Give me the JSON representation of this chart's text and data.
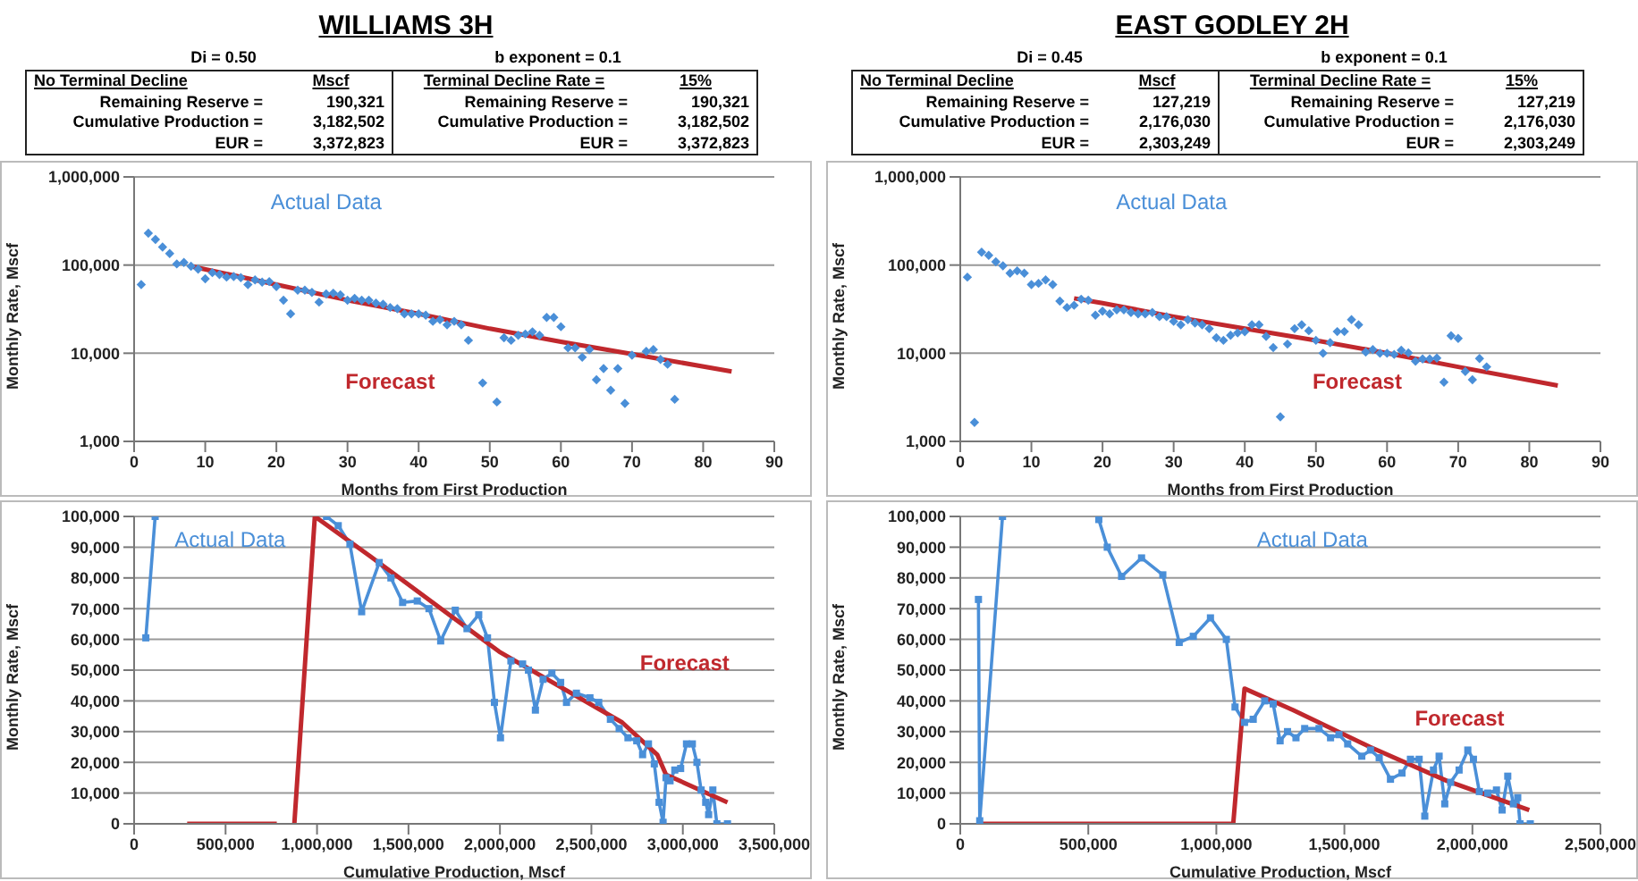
{
  "chart_data": [
    {
      "type": "other",
      "title": "WILLIAMS 3H",
      "annotations": [
        "Di = 0.50",
        "b exponent = 0.1",
        "No Terminal Decline",
        "Mscf",
        "Terminal Decline Rate =",
        "15%",
        "Remaining Reserve =",
        "190,321",
        "Remaining Reserve =",
        "190,321",
        "Cumulative Production =",
        "3,182,502",
        "Cumulative Production =",
        "3,182,502",
        "EUR =",
        "3,372,823",
        "EUR =",
        "3,372,823"
      ]
    },
    {
      "type": "other",
      "title": "EAST GODLEY 2H",
      "annotations": [
        "Di = 0.45",
        "b exponent = 0.1",
        "No Terminal Decline",
        "Mscf",
        "Terminal Decline Rate =",
        "15%",
        "Remaining Reserve =",
        "127,219",
        "Remaining Reserve =",
        "127,219",
        "Cumulative Production =",
        "2,176,030",
        "Cumulative Production =",
        "2,176,030",
        "EUR =",
        "2,303,249",
        "EUR =",
        "2,303,249"
      ]
    },
    {
      "type": "scatter",
      "xlabel": "Months from First Production",
      "ylabel": "Monthly Rate, Mscf",
      "xlim": [
        0,
        90
      ],
      "xticks": [
        0,
        10,
        20,
        30,
        40,
        50,
        60,
        70,
        80,
        90
      ],
      "ylim": [
        1000,
        1000000
      ],
      "yticks": [
        {
          "value": 1000,
          "label": "1,000"
        },
        {
          "value": 10000,
          "label": "10,000"
        },
        {
          "value": 100000,
          "label": "100,000"
        },
        {
          "value": 1000000,
          "label": "1,000,000"
        }
      ],
      "log": "y",
      "grid": "y",
      "annotations": [
        "Actual Data",
        "Forecast"
      ],
      "series": [
        {
          "type": "scatter",
          "marker": "diamond",
          "color": "#4a8fd8",
          "x": [
            1,
            2,
            3,
            4,
            5,
            6,
            7,
            8,
            9,
            10,
            11,
            12,
            13,
            14,
            15,
            16,
            17,
            18,
            19,
            20,
            21,
            22,
            23,
            24,
            25,
            26,
            27,
            28,
            29,
            30,
            31,
            32,
            33,
            34,
            35,
            36,
            37,
            38,
            39,
            40,
            41,
            42,
            43,
            44,
            45,
            46,
            47,
            49,
            51,
            52,
            53,
            54,
            55,
            56,
            57,
            58,
            59,
            60,
            61,
            62,
            63,
            64,
            65,
            66,
            67,
            68,
            69,
            70,
            72,
            73,
            74,
            75,
            76
          ],
          "values": [
            60000,
            230000,
            195000,
            160000,
            135000,
            103000,
            107000,
            97000,
            90000,
            70000,
            82000,
            78000,
            73000,
            74000,
            72000,
            60000,
            68000,
            64000,
            65000,
            57000,
            40000,
            28000,
            52000,
            52000,
            49000,
            38000,
            47000,
            48000,
            46000,
            40000,
            42000,
            40000,
            40000,
            37000,
            36000,
            33000,
            32000,
            28000,
            28000,
            28000,
            27000,
            23000,
            24000,
            21000,
            23000,
            21000,
            14000,
            4600,
            2800,
            15000,
            14000,
            16000,
            16500,
            17500,
            16000,
            25500,
            25500,
            20000,
            11500,
            11500,
            9000,
            11000,
            5000,
            6700,
            3800,
            6700,
            2700,
            9500,
            10500,
            11000,
            8500,
            7500,
            3000
          ]
        },
        {
          "type": "line",
          "marker": "none",
          "color": "#c0282d",
          "x": [
            8,
            20,
            30,
            40,
            50,
            60,
            70,
            84
          ],
          "values": [
            97000,
            60000,
            40000,
            28000,
            19000,
            13500,
            9800,
            6200
          ]
        }
      ]
    },
    {
      "type": "scatter",
      "xlabel": "Months from First Production",
      "ylabel": "Monthly Rate, Mscf",
      "xlim": [
        0,
        90
      ],
      "xticks": [
        0,
        10,
        20,
        30,
        40,
        50,
        60,
        70,
        80,
        90
      ],
      "ylim": [
        1000,
        1000000
      ],
      "yticks": [
        {
          "value": 1000,
          "label": "1,000"
        },
        {
          "value": 10000,
          "label": "10,000"
        },
        {
          "value": 100000,
          "label": "100,000"
        },
        {
          "value": 1000000,
          "label": "1,000,000"
        }
      ],
      "log": "y",
      "grid": "y",
      "annotations": [
        "Actual Data",
        "Forecast"
      ],
      "series": [
        {
          "type": "scatter",
          "marker": "diamond",
          "color": "#4a8fd8",
          "x": [
            1,
            2,
            3,
            4,
            5,
            6,
            7,
            8,
            9,
            10,
            11,
            12,
            13,
            14,
            15,
            16,
            17,
            18,
            19,
            20,
            21,
            22,
            23,
            24,
            25,
            26,
            27,
            28,
            29,
            30,
            31,
            32,
            33,
            34,
            35,
            36,
            37,
            38,
            39,
            40,
            41,
            42,
            43,
            44,
            45,
            46,
            47,
            48,
            49,
            50,
            51,
            52,
            53,
            54,
            55,
            56,
            57,
            58,
            59,
            60,
            61,
            62,
            63,
            64,
            65,
            66,
            67,
            68,
            69,
            70,
            71,
            72,
            73,
            74
          ],
          "values": [
            73000,
            1640,
            140000,
            129000,
            109000,
            98000,
            81000,
            86000,
            81000,
            60000,
            62000,
            68000,
            60000,
            39000,
            33000,
            35000,
            41000,
            40000,
            27000,
            30000,
            28000,
            31000,
            31000,
            29000,
            28000,
            28000,
            29000,
            26000,
            26000,
            23000,
            21000,
            24000,
            22000,
            21000,
            19000,
            15000,
            14000,
            16000,
            17000,
            17500,
            21000,
            21000,
            15500,
            11600,
            1900,
            12700,
            19000,
            21000,
            18000,
            14000,
            10000,
            13200,
            17600,
            17600,
            24000,
            21000,
            10300,
            11000,
            10000,
            10000,
            9700,
            10800,
            10100,
            8100,
            8600,
            8600,
            8800,
            4700,
            15800,
            14700,
            6200,
            5000,
            8700,
            7000
          ]
        },
        {
          "type": "line",
          "marker": "none",
          "color": "#c0282d",
          "x": [
            16,
            20,
            30,
            40,
            50,
            60,
            70,
            84
          ],
          "values": [
            42000,
            37000,
            26000,
            19000,
            14000,
            10000,
            7000,
            4300
          ]
        }
      ]
    },
    {
      "type": "line",
      "xlabel": "Cumulative Production,  Mscf",
      "ylabel": "Monthly Rate, Mscf",
      "xlim": [
        0,
        3500000
      ],
      "xticks": [
        0,
        {
          "value": 500000,
          "label": "500,000"
        },
        {
          "value": 1000000,
          "label": "1,000,000"
        },
        {
          "value": 1500000,
          "label": "1,500,000"
        },
        {
          "value": 2000000,
          "label": "2,000,000"
        },
        {
          "value": 2500000,
          "label": "2,500,000"
        },
        {
          "value": 3000000,
          "label": "3,000,000"
        },
        {
          "value": 3500000,
          "label": "3,500,000"
        }
      ],
      "ylim": [
        0,
        100000
      ],
      "yticks": [
        0,
        {
          "value": 10000,
          "label": "10,000"
        },
        {
          "value": 20000,
          "label": "20,000"
        },
        {
          "value": 30000,
          "label": "30,000"
        },
        {
          "value": 40000,
          "label": "40,000"
        },
        {
          "value": 50000,
          "label": "50,000"
        },
        {
          "value": 60000,
          "label": "60,000"
        },
        {
          "value": 70000,
          "label": "70,000"
        },
        {
          "value": 80000,
          "label": "80,000"
        },
        {
          "value": 90000,
          "label": "90,000"
        },
        {
          "value": 100000,
          "label": "100,000"
        }
      ],
      "grid": "y",
      "annotations": [
        "Actual Data",
        "Forecast"
      ],
      "series": [
        {
          "type": "line",
          "marker": "square",
          "color": "#4a8fd8",
          "x": [
            64000,
            115000,
            584000,
            1052000,
            1116000,
            1180000,
            1244000,
            1340000,
            1404000,
            1468000,
            1548000,
            1612000,
            1676000,
            1756000,
            1820000,
            1884000,
            1932000,
            1970000,
            2003000,
            2060000,
            2124000,
            2156000,
            2194000,
            2236000,
            2284000,
            2332000,
            2364000,
            2418000,
            2492000,
            2540000,
            2604000,
            2652000,
            2700000,
            2748000,
            2780000,
            2812000,
            2844000,
            2870000,
            2892000,
            2908000,
            2930000,
            2956000,
            2988000,
            3020000,
            3052000,
            3077000,
            3100000,
            3125000,
            3141000,
            3164000,
            3186000,
            3244000
          ],
          "values": [
            60500,
            100000,
            null,
            100000,
            97000,
            91000,
            69000,
            85000,
            80000,
            72000,
            72500,
            70000,
            59500,
            69500,
            63500,
            68000,
            60500,
            39500,
            28000,
            53000,
            52000,
            50000,
            37000,
            47000,
            49000,
            46000,
            39500,
            42500,
            41000,
            39500,
            34000,
            31000,
            28000,
            27000,
            22500,
            26000,
            19500,
            7000,
            500,
            15000,
            14000,
            17500,
            18000,
            26000,
            26000,
            20000,
            11000,
            7000,
            3000,
            11000,
            0,
            0
          ]
        },
        {
          "type": "line",
          "marker": "none",
          "color": "#c0282d",
          "x": [
            290000,
            780000,
            828000,
            876000,
            988000,
            1292000,
            1996000,
            2668000,
            2860000,
            2908000,
            3244000
          ],
          "values": [
            0,
            0,
            null,
            0,
            100000,
            87000,
            56000,
            33000,
            22500,
            16000,
            7000
          ]
        }
      ]
    },
    {
      "type": "line",
      "xlabel": "Cumulative Production,  Mscf",
      "ylabel": "Monthly Rate, Mscf",
      "xlim": [
        0,
        2500000
      ],
      "xticks": [
        0,
        {
          "value": 500000,
          "label": "500,000"
        },
        {
          "value": 1000000,
          "label": "1,000,000"
        },
        {
          "value": 1500000,
          "label": "1,500,000"
        },
        {
          "value": 2000000,
          "label": "2,000,000"
        },
        {
          "value": 2500000,
          "label": "2,500,000"
        }
      ],
      "ylim": [
        0,
        100000
      ],
      "yticks": [
        0,
        {
          "value": 10000,
          "label": "10,000"
        },
        {
          "value": 20000,
          "label": "20,000"
        },
        {
          "value": 30000,
          "label": "30,000"
        },
        {
          "value": 40000,
          "label": "40,000"
        },
        {
          "value": 50000,
          "label": "50,000"
        },
        {
          "value": 60000,
          "label": "60,000"
        },
        {
          "value": 70000,
          "label": "70,000"
        },
        {
          "value": 80000,
          "label": "80,000"
        },
        {
          "value": 90000,
          "label": "90,000"
        },
        {
          "value": 100000,
          "label": "100,000"
        }
      ],
      "grid": "y",
      "annotations": [
        "Actual Data",
        "Forecast"
      ],
      "series": [
        {
          "type": "line",
          "marker": "square",
          "color": "#4a8fd8",
          "x": [
            71000,
            76000,
            165000,
            350000,
            541000,
            574000,
            630000,
            708000,
            791000,
            855000,
            910000,
            977000,
            1039000,
            1073000,
            1110000,
            1144000,
            1189000,
            1222000,
            1249000,
            1278000,
            1311000,
            1345000,
            1401000,
            1446000,
            1479000,
            1513000,
            1568000,
            1602000,
            1636000,
            1680000,
            1725000,
            1758000,
            1792000,
            1814000,
            1848000,
            1870000,
            1892000,
            1915000,
            1948000,
            1982000,
            2004000,
            2027000,
            2060000,
            2094000,
            2116000,
            2138000,
            2160000,
            2177000,
            2186000,
            2226000
          ],
          "values": [
            73000,
            1000,
            100000,
            null,
            99000,
            90000,
            80500,
            86500,
            81000,
            59000,
            61000,
            67000,
            60000,
            38000,
            33000,
            34000,
            40000,
            39000,
            27000,
            30000,
            28000,
            31000,
            31000,
            28000,
            29000,
            26000,
            22000,
            24000,
            21500,
            14500,
            16500,
            21000,
            21000,
            2500,
            17500,
            22000,
            6500,
            13500,
            17500,
            24000,
            21000,
            10500,
            10000,
            11000,
            4500,
            15500,
            6500,
            8500,
            0,
            0
          ]
        },
        {
          "type": "line",
          "marker": "none",
          "color": "#c0282d",
          "x": [
            71000,
            1066000,
            1110000,
            1300000,
            1600000,
            1900000,
            2222000
          ],
          "values": [
            0,
            0,
            44000,
            37000,
            25000,
            14000,
            4500
          ]
        }
      ]
    }
  ]
}
